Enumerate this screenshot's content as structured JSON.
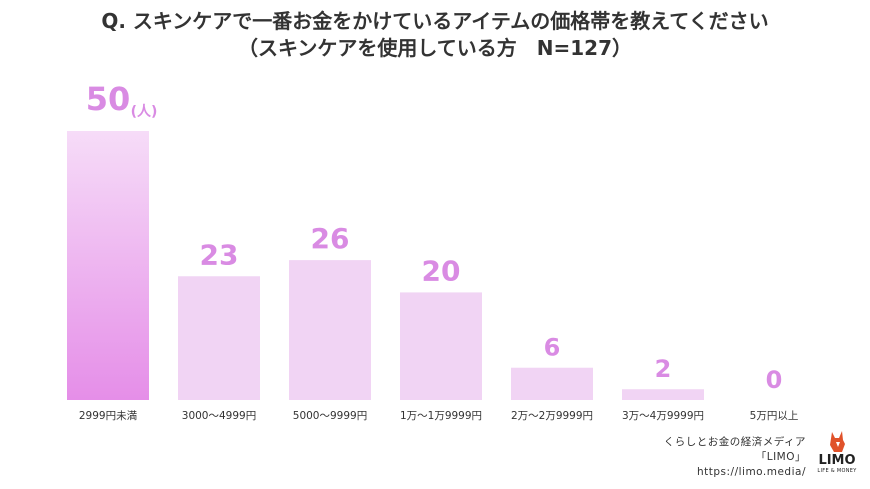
{
  "title": {
    "line1": "Q. スキンケアで一番お金をかけているアイテムの価格帯を教えてください",
    "line2": "（スキンケアを使用している方　N=127）"
  },
  "chart_data": {
    "type": "bar",
    "categories": [
      "2999円未満",
      "3000〜4999円",
      "5000〜9999円",
      "1万〜1万9999円",
      "2万〜2万9999円",
      "3万〜4万9999円",
      "5万円以上"
    ],
    "values": [
      50,
      23,
      26,
      20,
      6,
      2,
      0
    ],
    "unit_label": "(人)",
    "ylim": [
      0,
      50
    ],
    "grid": false,
    "legend": "none",
    "colors": {
      "highlight_top": "#f6dcf8",
      "highlight_bottom": "#e58ee8",
      "bar": "#f1d4f4",
      "value_text": "#d98be3"
    }
  },
  "footer": {
    "line1": "くらしとお金の経済メディア",
    "line2": "「LIMO」",
    "line3": "https://limo.media/"
  },
  "logo": {
    "text": "LIMO",
    "sub": "LIFE & MONEY",
    "icon": "fox-icon",
    "color": "#e0522a"
  }
}
